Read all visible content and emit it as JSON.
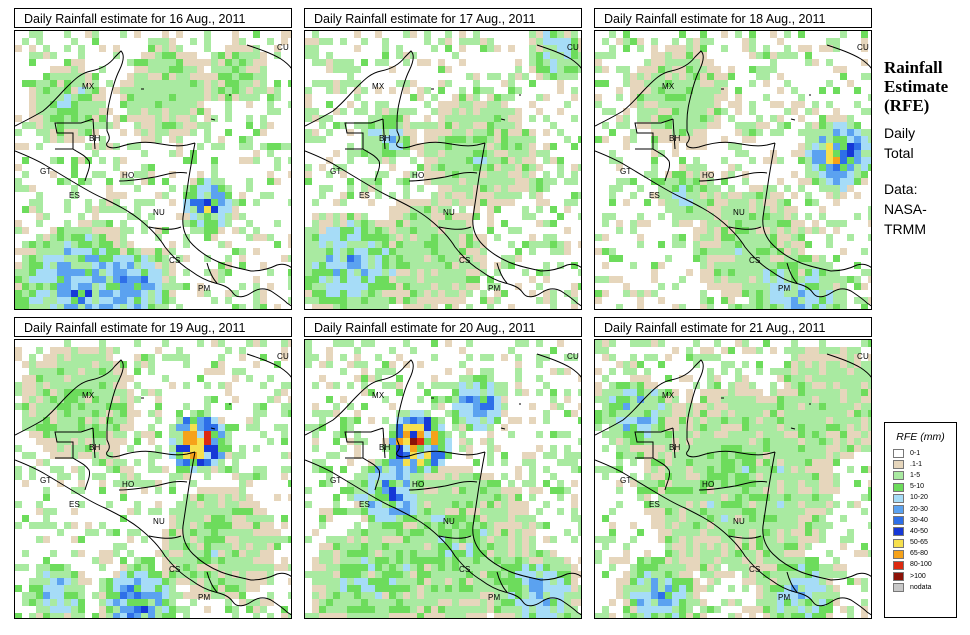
{
  "panels": [
    {
      "title": "Daily Rainfall estimate for  16 Aug., 2011"
    },
    {
      "title": "Daily Rainfall estimate for  17 Aug., 2011"
    },
    {
      "title": "Daily Rainfall estimate for  18 Aug., 2011"
    },
    {
      "title": "Daily Rainfall estimate for  19 Aug., 2011"
    },
    {
      "title": "Daily Rainfall estimate for  20 Aug., 2011"
    },
    {
      "title": "Daily Rainfall estimate for  21 Aug., 2011"
    }
  ],
  "country_labels": {
    "mx": "MX",
    "cu": "CU",
    "bh": "BH",
    "gt": "GT",
    "ho": "HO",
    "es": "ES",
    "nu": "NU",
    "cs": "CS",
    "pm": "PM"
  },
  "side": {
    "title_line1": "Rainfall",
    "title_line2": "Estimate",
    "title_line3": "(RFE)",
    "daily": "Daily",
    "total": "Total",
    "data_label": "Data:",
    "source1": "NASA-",
    "source2": "TRMM"
  },
  "legend": {
    "title": "RFE (mm)",
    "items": [
      {
        "label": "0-1",
        "color": "#ffffff"
      },
      {
        "label": ".1-1",
        "color": "#e6d6bc"
      },
      {
        "label": "1-5",
        "color": "#a9eaa1"
      },
      {
        "label": "5-10",
        "color": "#6ddc5c"
      },
      {
        "label": "10-20",
        "color": "#a6dcf7"
      },
      {
        "label": "20-30",
        "color": "#5ba2f0"
      },
      {
        "label": "30-40",
        "color": "#2e6fe8"
      },
      {
        "label": "40-50",
        "color": "#1638d6"
      },
      {
        "label": "50-65",
        "color": "#f6e04e"
      },
      {
        "label": "65-80",
        "color": "#f6a21a"
      },
      {
        "label": "80-100",
        "color": "#dd2a10"
      },
      {
        "label": ">100",
        "color": "#8c1208"
      },
      {
        "label": "nodata",
        "color": "#c8c8c8"
      }
    ]
  },
  "rain_pattern": {
    "16 Aug., 2011": "scattered green, heavy blue over the Pacific south of Central America",
    "17 Aug., 2011": "scattered green with blue over the Pacific",
    "18 Aug., 2011": "scattered green, intense cell east near Cuba",
    "19 Aug., 2011": "heavy red/orange cell north of Honduras, Pacific bands",
    "20 Aug., 2011": "extreme red cell over Belize/Honduras, widespread coverage",
    "21 Aug., 2011": "widespread green, blue over Yucatan and Belize"
  }
}
